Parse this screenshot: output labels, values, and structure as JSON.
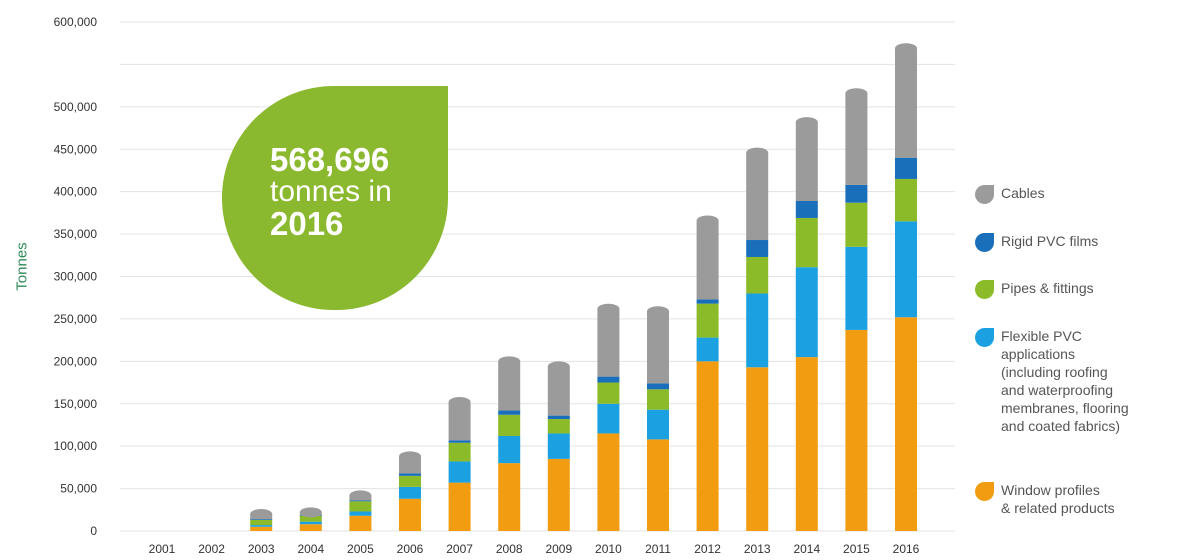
{
  "callout": {
    "value": "568,696",
    "text": "tonnes in",
    "year": "2016"
  },
  "colors": {
    "cables": "#9b9b9b",
    "rigid": "#1a6fbb",
    "pipes": "#8cbb2a",
    "flexible": "#1ba1e2",
    "window": "#f29c11",
    "badge": "#8ab82e",
    "ylabel": "#2e8b57"
  },
  "chart_data": {
    "type": "bar",
    "stacked": true,
    "ylabel": "Tonnes",
    "ylim": [
      0,
      600000
    ],
    "yticks": [
      0,
      50000,
      100000,
      150000,
      200000,
      250000,
      300000,
      350000,
      400000,
      450000,
      500000,
      550000,
      600000
    ],
    "ytick_labels": [
      "0",
      "50,000",
      "100,000",
      "150,000",
      "200,000",
      "250,000",
      "300,000",
      "350,000",
      "400,000",
      "450,000",
      "500,000",
      "",
      "600,000"
    ],
    "grid": true,
    "legend_position": "right",
    "categories": [
      "2001",
      "2002",
      "2003",
      "2004",
      "2005",
      "2006",
      "2007",
      "2008",
      "2009",
      "2010",
      "2011",
      "2012",
      "2013",
      "2014",
      "2015",
      "2016"
    ],
    "series": [
      {
        "name": "Window profiles\n& related products",
        "key": "window",
        "values": [
          0,
          0,
          5000,
          8000,
          18000,
          38000,
          57000,
          80000,
          85000,
          115000,
          108000,
          200000,
          193000,
          205000,
          237000,
          252000
        ]
      },
      {
        "name": "Flexible PVC\napplications\n(including roofing\nand waterproofing\nmembranes, flooring\nand coated fabrics)",
        "key": "flexible",
        "values": [
          0,
          0,
          2000,
          3000,
          5000,
          14000,
          25000,
          32000,
          30000,
          35000,
          35000,
          28000,
          87000,
          106000,
          98000,
          113000
        ]
      },
      {
        "name": "Pipes & fittings",
        "key": "pipes",
        "values": [
          0,
          0,
          6000,
          7000,
          12000,
          13000,
          22000,
          25000,
          17000,
          25000,
          24000,
          40000,
          43000,
          58000,
          52000,
          50000
        ]
      },
      {
        "name": "Rigid PVC films",
        "key": "rigid",
        "values": [
          0,
          0,
          1000,
          1000,
          1000,
          3000,
          3000,
          5000,
          4000,
          7000,
          7000,
          5000,
          20000,
          20000,
          21000,
          25000
        ]
      },
      {
        "name": "Cables",
        "key": "cables",
        "values": [
          0,
          0,
          6000,
          3000,
          6000,
          20000,
          45000,
          58000,
          58000,
          80000,
          85000,
          93000,
          103000,
          93000,
          108000,
          129000
        ]
      }
    ]
  }
}
